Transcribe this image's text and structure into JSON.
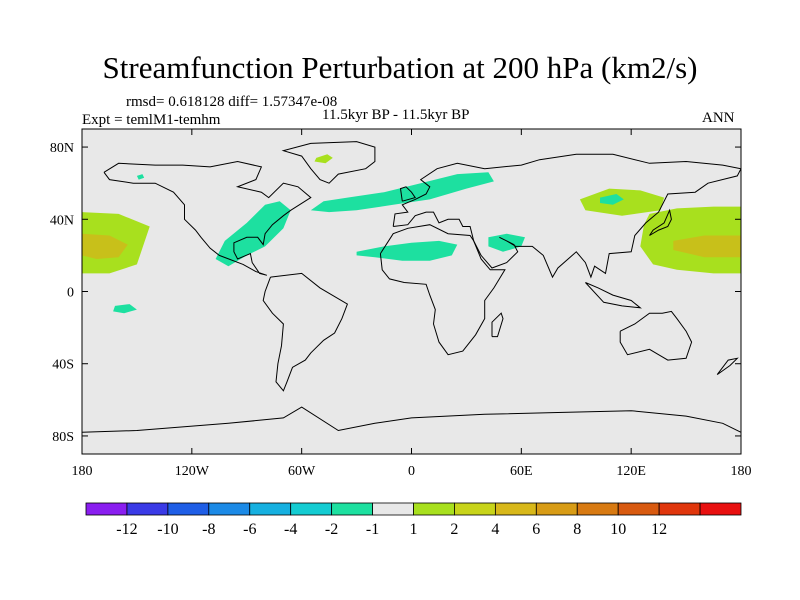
{
  "chart_data": {
    "type": "heatmap",
    "title": "Streamfunction Perturbation at 200 hPa (km2/s)",
    "stats_text": "rmsd= 0.618128 diff= 1.57347e-08",
    "experiment_text": "Expt = temlM1-temhm",
    "period_text": "11.5kyr BP - 11.5kyr BP",
    "season_text": "ANN",
    "x_range": [
      -180,
      180
    ],
    "y_range": [
      -90,
      90
    ],
    "x_ticks": [
      {
        "value": -180,
        "label": "180"
      },
      {
        "value": -120,
        "label": "120W"
      },
      {
        "value": -60,
        "label": "60W"
      },
      {
        "value": 0,
        "label": "0"
      },
      {
        "value": 60,
        "label": "60E"
      },
      {
        "value": 120,
        "label": "120E"
      },
      {
        "value": 180,
        "label": "180"
      }
    ],
    "y_ticks": [
      {
        "value": 80,
        "label": "80N"
      },
      {
        "value": 40,
        "label": "40N"
      },
      {
        "value": 0,
        "label": "0"
      },
      {
        "value": -40,
        "label": "40S"
      },
      {
        "value": -80,
        "label": "80S"
      }
    ],
    "colorbar": {
      "colors": [
        "#8a1ef0",
        "#3a3ae6",
        "#1f5ee6",
        "#1c8ae6",
        "#16b0e0",
        "#14ccd2",
        "#1de0a0",
        "#e8e8e8",
        "#a8e01e",
        "#c8d41a",
        "#d8b81a",
        "#d89c16",
        "#d87a12",
        "#d85a10",
        "#e0360c",
        "#e81010"
      ],
      "neutral_index": 7,
      "labels": [
        "-12",
        "-10",
        "-8",
        "-6",
        "-4",
        "-2",
        "-1",
        "1",
        "2",
        "4",
        "6",
        "8",
        "10",
        "12"
      ]
    },
    "regions": [
      {
        "name": "north-atlantic-band",
        "level": -1,
        "points": [
          [
            -48,
            50
          ],
          [
            -35,
            52
          ],
          [
            -15,
            55
          ],
          [
            5,
            60
          ],
          [
            25,
            65
          ],
          [
            42,
            66
          ],
          [
            45,
            61
          ],
          [
            30,
            57
          ],
          [
            10,
            51
          ],
          [
            -10,
            48
          ],
          [
            -30,
            45
          ],
          [
            -45,
            44
          ],
          [
            -55,
            45
          ]
        ]
      },
      {
        "name": "western-atlantic-arc",
        "level": -1,
        "points": [
          [
            -80,
            48
          ],
          [
            -72,
            50
          ],
          [
            -66,
            45
          ],
          [
            -70,
            35
          ],
          [
            -80,
            25
          ],
          [
            -90,
            20
          ],
          [
            -100,
            14
          ],
          [
            -107,
            18
          ],
          [
            -102,
            28
          ],
          [
            -90,
            38
          ]
        ]
      },
      {
        "name": "greenland-patch",
        "level": 1,
        "points": [
          [
            -52,
            74
          ],
          [
            -46,
            76
          ],
          [
            -43,
            74
          ],
          [
            -47,
            71
          ],
          [
            -53,
            72
          ]
        ]
      },
      {
        "name": "african-patch",
        "level": -1,
        "points": [
          [
            -30,
            22
          ],
          [
            -15,
            25
          ],
          [
            0,
            27
          ],
          [
            15,
            28
          ],
          [
            25,
            26
          ],
          [
            22,
            20
          ],
          [
            10,
            17
          ],
          [
            -5,
            17
          ],
          [
            -20,
            19
          ],
          [
            -30,
            20
          ]
        ]
      },
      {
        "name": "arabian-patch",
        "level": -1,
        "points": [
          [
            42,
            30
          ],
          [
            52,
            32
          ],
          [
            62,
            30
          ],
          [
            60,
            25
          ],
          [
            50,
            22
          ],
          [
            42,
            25
          ]
        ]
      },
      {
        "name": "mongolia-patch-outer",
        "level": 1,
        "points": [
          [
            92,
            51
          ],
          [
            108,
            57
          ],
          [
            125,
            56
          ],
          [
            138,
            52
          ],
          [
            136,
            45
          ],
          [
            115,
            42
          ],
          [
            95,
            45
          ]
        ]
      },
      {
        "name": "mongolia-patch-inner",
        "level": -1,
        "points": [
          [
            103,
            52
          ],
          [
            112,
            54
          ],
          [
            116,
            51
          ],
          [
            110,
            48
          ],
          [
            103,
            49
          ]
        ]
      },
      {
        "name": "west-pacific-outer",
        "level": 1,
        "points": [
          [
            130,
            43
          ],
          [
            145,
            46
          ],
          [
            165,
            47
          ],
          [
            180,
            47
          ],
          [
            180,
            10
          ],
          [
            165,
            10
          ],
          [
            145,
            12
          ],
          [
            132,
            15
          ],
          [
            125,
            25
          ],
          [
            127,
            37
          ]
        ]
      },
      {
        "name": "west-pacific-inner",
        "level": 2,
        "points": [
          [
            143,
            28
          ],
          [
            160,
            31
          ],
          [
            180,
            31
          ],
          [
            180,
            19
          ],
          [
            160,
            19
          ],
          [
            143,
            23
          ]
        ]
      },
      {
        "name": "east-pacific-outer",
        "level": 1,
        "points": [
          [
            -180,
            44
          ],
          [
            -160,
            43
          ],
          -1
        ],
        "note": ""
      },
      {
        "name": "east-pacific-outer-b",
        "level": 1,
        "points": [
          [
            -180,
            44
          ],
          [
            -160,
            43
          ],
          [
            -143,
            36
          ],
          [
            -150,
            15
          ],
          [
            -165,
            10
          ],
          [
            -180,
            10
          ]
        ]
      },
      {
        "name": "east-pacific-inner",
        "level": 2,
        "points": [
          [
            -180,
            32
          ],
          [
            -165,
            31
          ],
          [
            -155,
            26
          ],
          [
            -160,
            19
          ],
          [
            -172,
            18
          ],
          [
            -180,
            20
          ]
        ]
      },
      {
        "name": "south-pacific-patch",
        "level": -1,
        "points": [
          [
            -162,
            -8
          ],
          [
            -154,
            -7
          ],
          [
            -150,
            -10
          ],
          [
            -157,
            -12
          ],
          [
            -163,
            -11
          ]
        ]
      },
      {
        "name": "tiny-patch",
        "level": -1,
        "points": [
          [
            -150,
            64
          ],
          [
            -147,
            65
          ],
          [
            -146,
            63
          ],
          [
            -149,
            62
          ]
        ]
      }
    ]
  }
}
